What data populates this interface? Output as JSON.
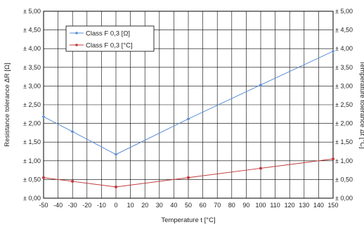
{
  "chart_data": {
    "type": "line",
    "x": [
      -50,
      -30,
      0,
      50,
      100,
      150
    ],
    "xlim": [
      -50,
      150
    ],
    "x_ticks": [
      -50,
      -40,
      -30,
      -20,
      -10,
      0,
      10,
      20,
      30,
      40,
      50,
      60,
      70,
      80,
      90,
      100,
      110,
      120,
      130,
      140,
      150
    ],
    "ylim": [
      0,
      5
    ],
    "y_ticks": [
      "± 0,00",
      "± 0,50",
      "± 1,00",
      "± 1,50",
      "± 2,00",
      "± 2,50",
      "± 3,00",
      "± 3,50",
      "± 4,00",
      "± 4,50",
      "± 5,00"
    ],
    "xlabel": "Temperature t [°C]",
    "ylabel": "Resistance tolerance ΔR [Ω]",
    "ylabel_right": "Temperature tolerance Δt [°C]",
    "grid": true,
    "legend_position": "top-left",
    "series": [
      {
        "name": "Class F 0,3 [Ω]",
        "color": "#5b8fd6",
        "values": [
          2.18,
          1.78,
          1.17,
          2.12,
          3.03,
          3.93
        ]
      },
      {
        "name": "Class F 0,3 [°C]",
        "color": "#c0393b",
        "values": [
          0.55,
          0.45,
          0.3,
          0.55,
          0.8,
          1.05
        ]
      }
    ]
  }
}
